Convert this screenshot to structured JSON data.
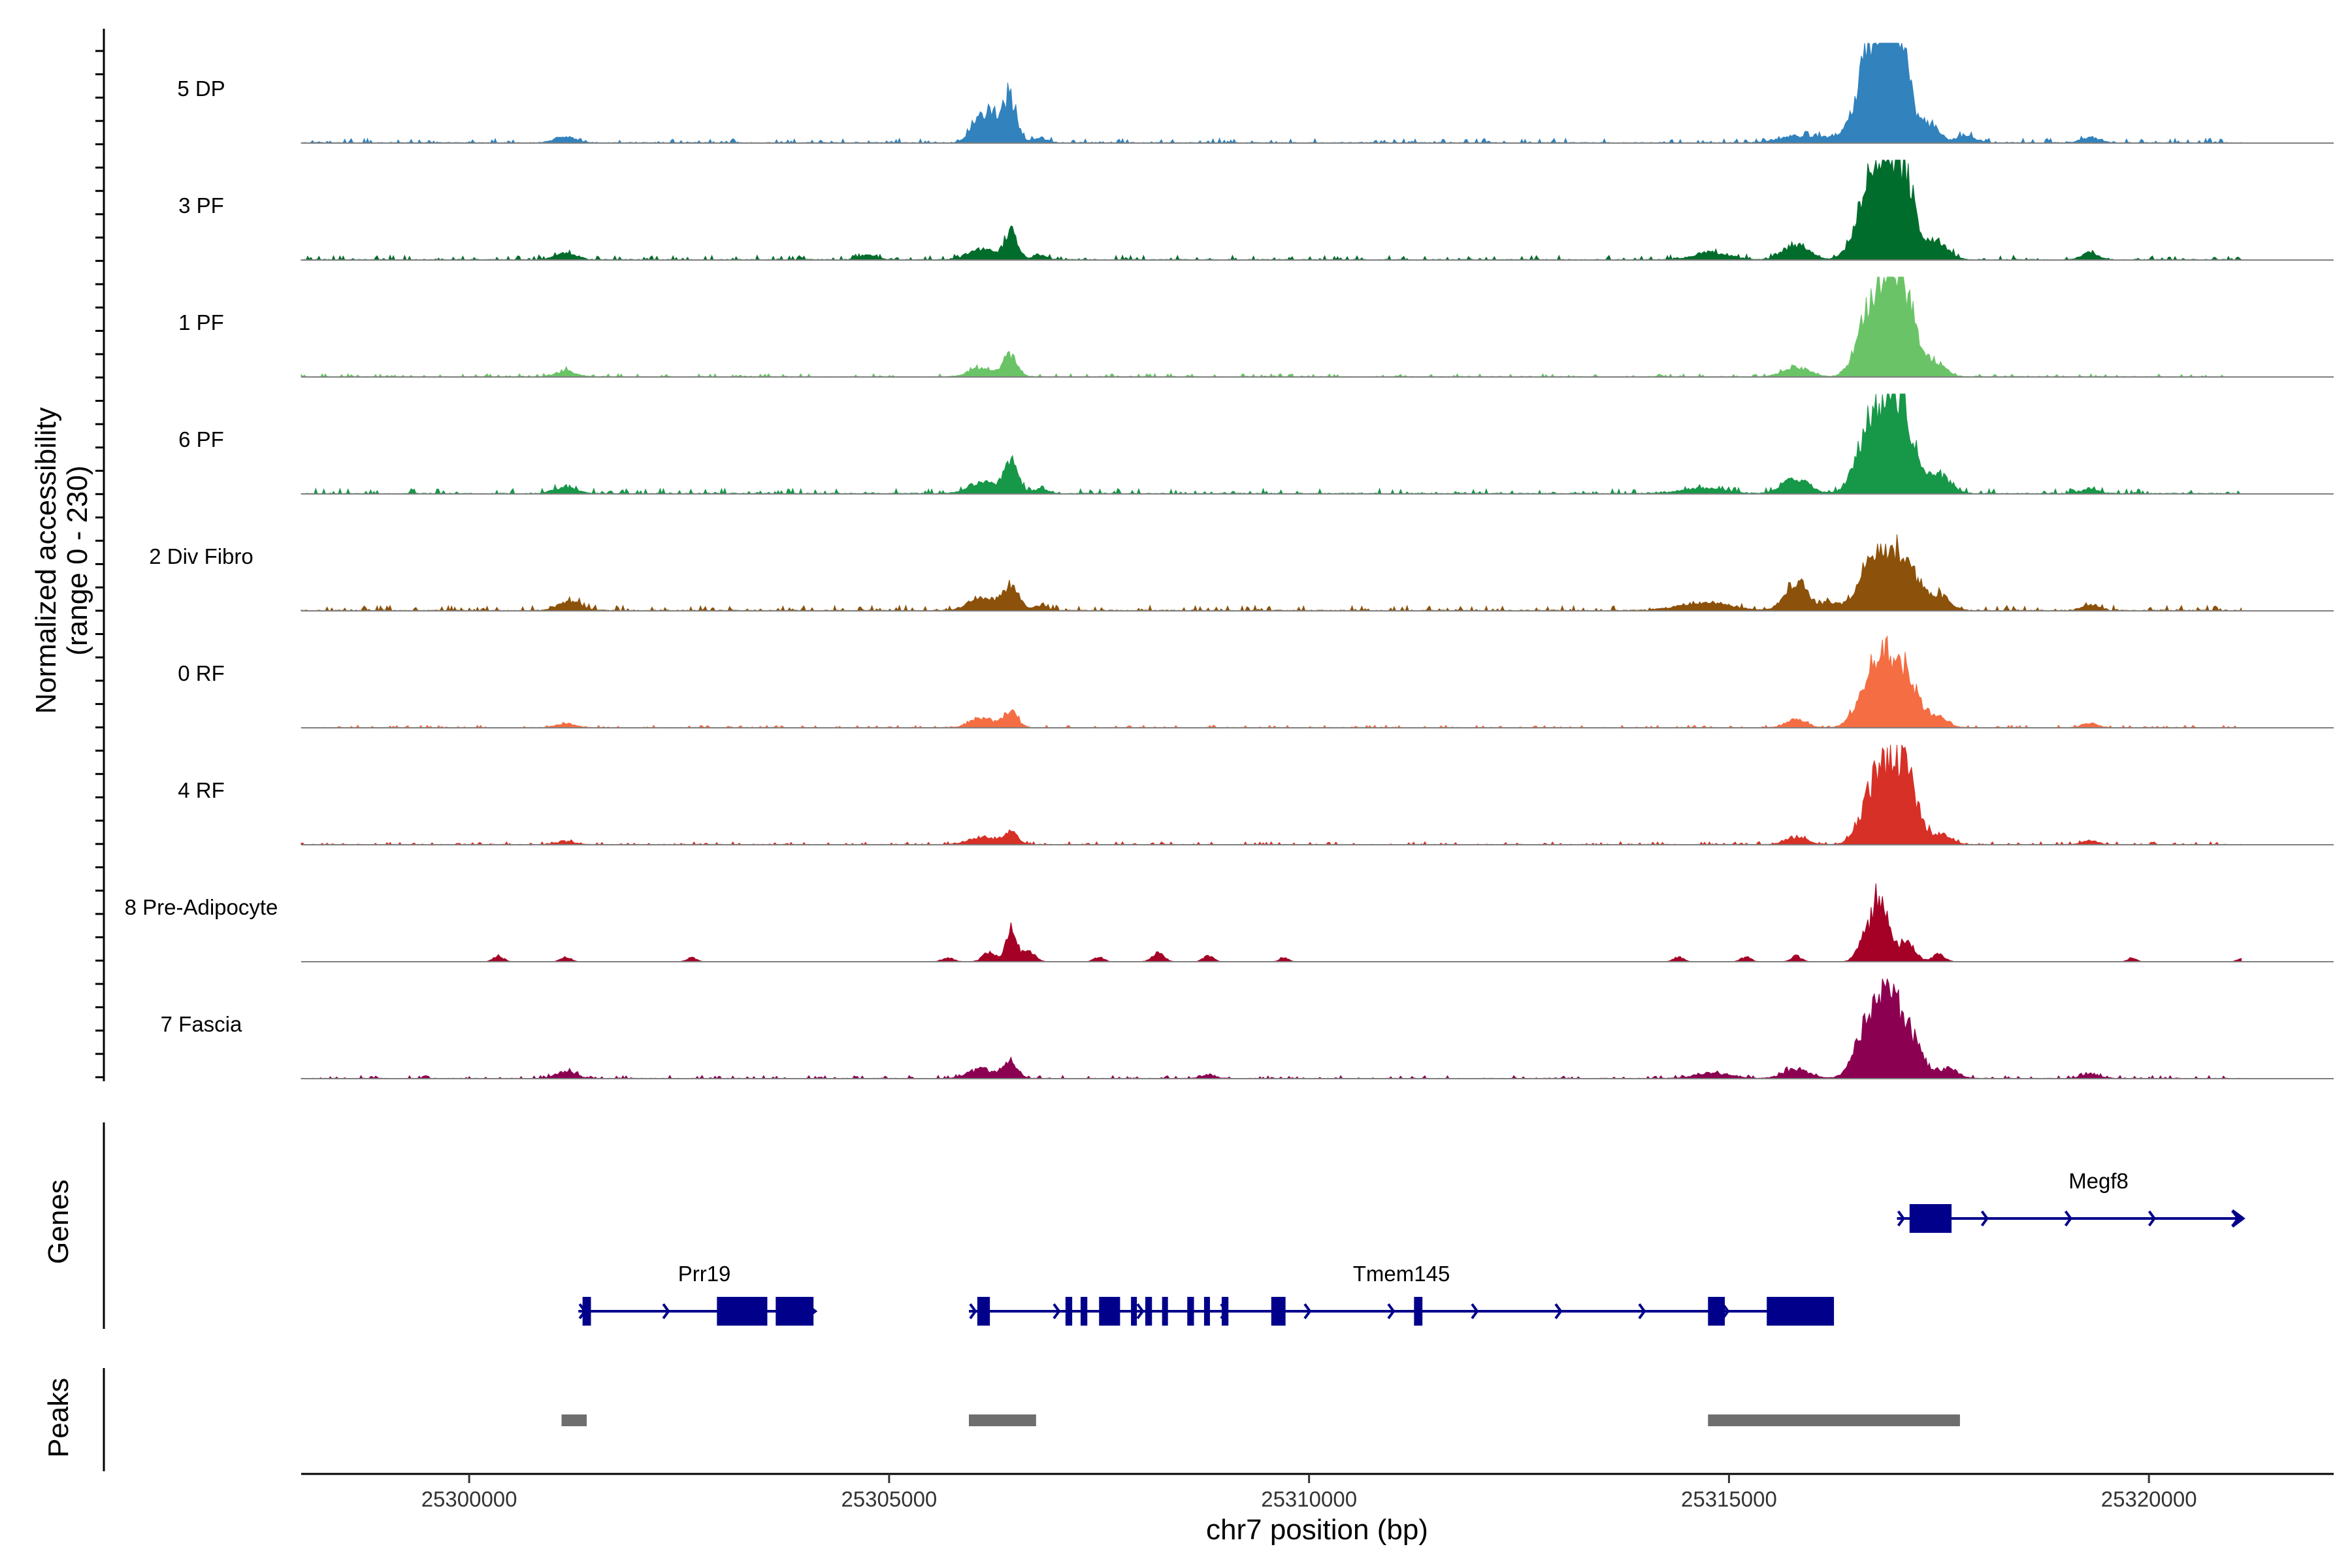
{
  "chart_data": {
    "type": "area",
    "title": "",
    "xlabel": "chr7 position (bp)",
    "ylabel_line1": "Normalized accessibility",
    "ylabel_line2": "(range 0 - 230)",
    "y_range": [
      0,
      230
    ],
    "xlim": [
      25298000,
      25322200
    ],
    "x_ticks": [
      25300000,
      25305000,
      25310000,
      25315000,
      25320000
    ],
    "x_tick_labels": [
      "25300000",
      "25305000",
      "25310000",
      "25315000",
      "25320000"
    ],
    "track_names": {
      "genes": "Genes",
      "peaks": "Peaks"
    },
    "series": [
      {
        "name": "5 DP",
        "color": "#3182bd",
        "noise": 0.022,
        "peaks": [
          [
            25301150,
            120,
            0.06
          ],
          [
            25306050,
            100,
            0.15
          ],
          [
            25306300,
            150,
            0.32
          ],
          [
            25306450,
            60,
            0.3
          ],
          [
            25306800,
            80,
            0.05
          ],
          [
            25315800,
            200,
            0.07
          ],
          [
            25316200,
            150,
            0.05
          ],
          [
            25316850,
            170,
            1.0
          ],
          [
            25316650,
            150,
            0.55
          ],
          [
            25317050,
            130,
            0.6
          ],
          [
            25317400,
            100,
            0.18
          ],
          [
            25317800,
            120,
            0.07
          ],
          [
            25319300,
            100,
            0.06
          ]
        ]
      },
      {
        "name": "3 PF",
        "color": "#006d2c",
        "noise": 0.022,
        "peaks": [
          [
            25301150,
            120,
            0.08
          ],
          [
            25304750,
            100,
            0.05
          ],
          [
            25306100,
            150,
            0.12
          ],
          [
            25306450,
            80,
            0.28
          ],
          [
            25306800,
            80,
            0.05
          ],
          [
            25314800,
            200,
            0.08
          ],
          [
            25315800,
            150,
            0.16
          ],
          [
            25316900,
            170,
            0.78
          ],
          [
            25316650,
            150,
            0.55
          ],
          [
            25317100,
            140,
            0.55
          ],
          [
            25317500,
            120,
            0.18
          ],
          [
            25319300,
            100,
            0.07
          ]
        ]
      },
      {
        "name": "1 PF",
        "color": "#6ac467",
        "noise": 0.015,
        "peaks": [
          [
            25301150,
            120,
            0.06
          ],
          [
            25306100,
            140,
            0.1
          ],
          [
            25306450,
            80,
            0.22
          ],
          [
            25315800,
            150,
            0.1
          ],
          [
            25316900,
            160,
            0.9
          ],
          [
            25316650,
            140,
            0.5
          ],
          [
            25317100,
            140,
            0.55
          ],
          [
            25317450,
            120,
            0.15
          ]
        ]
      },
      {
        "name": "6 PF",
        "color": "#179748",
        "noise": 0.025,
        "peaks": [
          [
            25301150,
            130,
            0.07
          ],
          [
            25306100,
            150,
            0.12
          ],
          [
            25306450,
            90,
            0.32
          ],
          [
            25306800,
            80,
            0.05
          ],
          [
            25314700,
            250,
            0.06
          ],
          [
            25315800,
            150,
            0.16
          ],
          [
            25316900,
            160,
            0.78
          ],
          [
            25316650,
            150,
            0.52
          ],
          [
            25317100,
            140,
            0.55
          ],
          [
            25317500,
            130,
            0.2
          ],
          [
            25319300,
            100,
            0.05
          ]
        ]
      },
      {
        "name": "2 Div Fibro",
        "color": "#8c510a",
        "noise": 0.025,
        "peaks": [
          [
            25301200,
            130,
            0.1
          ],
          [
            25306100,
            150,
            0.14
          ],
          [
            25306450,
            90,
            0.28
          ],
          [
            25306800,
            80,
            0.05
          ],
          [
            25314700,
            300,
            0.08
          ],
          [
            25315800,
            130,
            0.32
          ],
          [
            25316200,
            100,
            0.08
          ],
          [
            25316750,
            180,
            0.58
          ],
          [
            25317100,
            160,
            0.48
          ],
          [
            25317500,
            130,
            0.15
          ],
          [
            25319300,
            100,
            0.06
          ]
        ]
      },
      {
        "name": "0 RF",
        "color": "#f46d43",
        "noise": 0.012,
        "peaks": [
          [
            25301150,
            120,
            0.04
          ],
          [
            25306100,
            140,
            0.1
          ],
          [
            25306450,
            80,
            0.18
          ],
          [
            25315800,
            120,
            0.08
          ],
          [
            25316900,
            160,
            0.62
          ],
          [
            25316650,
            140,
            0.4
          ],
          [
            25317150,
            140,
            0.38
          ],
          [
            25317500,
            110,
            0.1
          ],
          [
            25319300,
            90,
            0.05
          ]
        ]
      },
      {
        "name": "4 RF",
        "color": "#d73027",
        "noise": 0.014,
        "peaks": [
          [
            25301150,
            120,
            0.03
          ],
          [
            25306100,
            150,
            0.08
          ],
          [
            25306450,
            80,
            0.15
          ],
          [
            25315800,
            120,
            0.08
          ],
          [
            25316950,
            160,
            0.7
          ],
          [
            25316700,
            140,
            0.45
          ],
          [
            25317150,
            140,
            0.4
          ],
          [
            25317550,
            110,
            0.1
          ],
          [
            25319300,
            90,
            0.04
          ]
        ]
      },
      {
        "name": "8 Pre-Adipocyte",
        "color": "#a50026",
        "noise": 0.0,
        "peaks": [
          [
            25300350,
            60,
            0.06
          ],
          [
            25301150,
            60,
            0.05
          ],
          [
            25302650,
            60,
            0.04
          ],
          [
            25305700,
            70,
            0.04
          ],
          [
            25306200,
            80,
            0.1
          ],
          [
            25306450,
            60,
            0.35
          ],
          [
            25306650,
            80,
            0.12
          ],
          [
            25307500,
            60,
            0.05
          ],
          [
            25308200,
            70,
            0.1
          ],
          [
            25308800,
            60,
            0.06
          ],
          [
            25309700,
            50,
            0.05
          ],
          [
            25314400,
            60,
            0.05
          ],
          [
            25315200,
            60,
            0.05
          ],
          [
            25315800,
            60,
            0.06
          ],
          [
            25316600,
            80,
            0.22
          ],
          [
            25316800,
            90,
            0.72
          ],
          [
            25317100,
            110,
            0.2
          ],
          [
            25317500,
            70,
            0.08
          ],
          [
            25319800,
            50,
            0.04
          ],
          [
            25321100,
            50,
            0.03
          ]
        ]
      },
      {
        "name": "7 Fascia",
        "color": "#8c0052",
        "noise": 0.015,
        "peaks": [
          [
            25301150,
            120,
            0.07
          ],
          [
            25306100,
            150,
            0.1
          ],
          [
            25306450,
            80,
            0.17
          ],
          [
            25308800,
            80,
            0.04
          ],
          [
            25314800,
            200,
            0.06
          ],
          [
            25315800,
            150,
            0.1
          ],
          [
            25316900,
            160,
            0.7
          ],
          [
            25316650,
            150,
            0.45
          ],
          [
            25317150,
            150,
            0.35
          ],
          [
            25317600,
            120,
            0.1
          ],
          [
            25319300,
            100,
            0.05
          ]
        ]
      }
    ],
    "genes": [
      {
        "name": "Prr19",
        "start": 25301300,
        "end": 25304100,
        "row": 1,
        "label_x": 25302800,
        "exons": [
          [
            25301350,
            25301450
          ],
          [
            25302950,
            25303550
          ],
          [
            25303650,
            25304100
          ]
        ]
      },
      {
        "name": "Tmem145",
        "start": 25305950,
        "end": 25316200,
        "row": 1,
        "label_x": 25311100,
        "exons": [
          [
            25306050,
            25306200
          ],
          [
            25307100,
            25307180
          ],
          [
            25307280,
            25307360
          ],
          [
            25307500,
            25307750
          ],
          [
            25307880,
            25307950
          ],
          [
            25308050,
            25308130
          ],
          [
            25308250,
            25308320
          ],
          [
            25308550,
            25308630
          ],
          [
            25308750,
            25308820
          ],
          [
            25308960,
            25309040
          ],
          [
            25309550,
            25309720
          ],
          [
            25311250,
            25311350
          ],
          [
            25314750,
            25314950
          ],
          [
            25315450,
            25316250
          ]
        ]
      },
      {
        "name": "Megf8",
        "start": 25317000,
        "end": 25321100,
        "row": 0,
        "label_x": 25319400,
        "exons": [
          [
            25317150,
            25317650
          ]
        ]
      }
    ],
    "peaks_track": [
      [
        25301100,
        25301400
      ],
      [
        25305950,
        25306750
      ],
      [
        25314750,
        25317750
      ]
    ]
  },
  "colors": {
    "gene": "#00008b",
    "peak": "#6e6e6e",
    "baseline": "#7f7f7f"
  }
}
